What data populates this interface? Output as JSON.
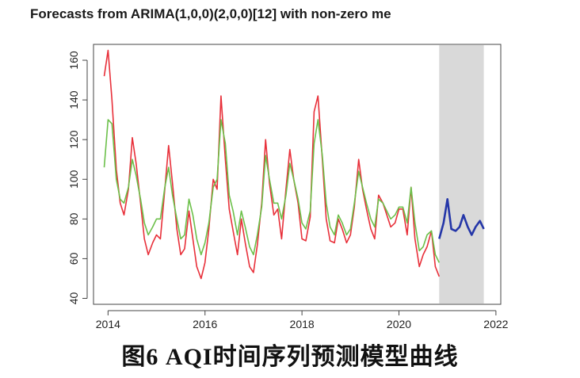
{
  "chart_data": {
    "type": "line",
    "title": "Forecasts from ARIMA(1,0,0)(2,0,0)[12] with non-zero me",
    "xlim": [
      2013.7,
      2022.1
    ],
    "ylim": [
      37,
      168
    ],
    "x_ticks": [
      2014,
      2016,
      2018,
      2020,
      2022
    ],
    "x_tick_labels": [
      "2014",
      "2016",
      "2018",
      "2020",
      "2022"
    ],
    "y_ticks": [
      40,
      60,
      80,
      100,
      120,
      140,
      160
    ],
    "y_tick_labels": [
      "40",
      "60",
      "80",
      "100",
      "120",
      "140",
      "160"
    ],
    "forecast_region": [
      2020.83,
      2021.75
    ],
    "colors": {
      "observed": "#e8303a",
      "fitted": "#6cc04a",
      "forecast": "#2436a8",
      "forecast_band": "#d9d9d9"
    },
    "series": [
      {
        "key": "observed",
        "x": [
          2013.92,
          2014.0,
          2014.08,
          2014.17,
          2014.25,
          2014.33,
          2014.42,
          2014.5,
          2014.58,
          2014.67,
          2014.75,
          2014.83,
          2014.92,
          2015.0,
          2015.08,
          2015.17,
          2015.25,
          2015.33,
          2015.42,
          2015.5,
          2015.58,
          2015.67,
          2015.75,
          2015.83,
          2015.92,
          2016.0,
          2016.08,
          2016.17,
          2016.25,
          2016.33,
          2016.42,
          2016.5,
          2016.58,
          2016.67,
          2016.75,
          2016.83,
          2016.92,
          2017.0,
          2017.08,
          2017.17,
          2017.25,
          2017.33,
          2017.42,
          2017.5,
          2017.58,
          2017.67,
          2017.75,
          2017.83,
          2017.92,
          2018.0,
          2018.08,
          2018.17,
          2018.25,
          2018.33,
          2018.42,
          2018.5,
          2018.58,
          2018.67,
          2018.75,
          2018.83,
          2018.92,
          2019.0,
          2019.08,
          2019.17,
          2019.25,
          2019.33,
          2019.42,
          2019.5,
          2019.58,
          2019.67,
          2019.75,
          2019.83,
          2019.92,
          2020.0,
          2020.08,
          2020.17,
          2020.25,
          2020.33,
          2020.42,
          2020.5,
          2020.58,
          2020.67,
          2020.75,
          2020.83
        ],
        "y": [
          152,
          165,
          140,
          105,
          88,
          82,
          95,
          121,
          108,
          88,
          70,
          62,
          68,
          72,
          70,
          95,
          117,
          98,
          75,
          62,
          65,
          84,
          70,
          56,
          50,
          58,
          75,
          100,
          95,
          142,
          110,
          85,
          74,
          62,
          80,
          68,
          56,
          53,
          67,
          88,
          120,
          98,
          82,
          85,
          70,
          95,
          115,
          100,
          88,
          70,
          69,
          81,
          134,
          142,
          110,
          80,
          69,
          68,
          80,
          75,
          68,
          72,
          86,
          110,
          95,
          85,
          75,
          70,
          92,
          88,
          82,
          76,
          78,
          85,
          85,
          72,
          96,
          70,
          56,
          62,
          66,
          74,
          56,
          51
        ]
      },
      {
        "key": "fitted",
        "x": [
          2013.92,
          2014.0,
          2014.08,
          2014.17,
          2014.25,
          2014.33,
          2014.42,
          2014.5,
          2014.58,
          2014.67,
          2014.75,
          2014.83,
          2014.92,
          2015.0,
          2015.08,
          2015.17,
          2015.25,
          2015.33,
          2015.42,
          2015.5,
          2015.58,
          2015.67,
          2015.75,
          2015.83,
          2015.92,
          2016.0,
          2016.08,
          2016.17,
          2016.25,
          2016.33,
          2016.42,
          2016.5,
          2016.58,
          2016.67,
          2016.75,
          2016.83,
          2016.92,
          2017.0,
          2017.08,
          2017.17,
          2017.25,
          2017.33,
          2017.42,
          2017.5,
          2017.58,
          2017.67,
          2017.75,
          2017.83,
          2017.92,
          2018.0,
          2018.08,
          2018.17,
          2018.25,
          2018.33,
          2018.42,
          2018.5,
          2018.58,
          2018.67,
          2018.75,
          2018.83,
          2018.92,
          2019.0,
          2019.08,
          2019.17,
          2019.25,
          2019.33,
          2019.42,
          2019.5,
          2019.58,
          2019.67,
          2019.75,
          2019.83,
          2019.92,
          2020.0,
          2020.08,
          2020.17,
          2020.25,
          2020.33,
          2020.42,
          2020.5,
          2020.58,
          2020.67,
          2020.75,
          2020.83
        ],
        "y": [
          106,
          130,
          128,
          100,
          90,
          88,
          96,
          110,
          102,
          90,
          78,
          72,
          76,
          80,
          80,
          96,
          106,
          92,
          80,
          70,
          72,
          90,
          82,
          70,
          62,
          68,
          78,
          96,
          100,
          130,
          118,
          92,
          84,
          72,
          84,
          76,
          66,
          62,
          72,
          86,
          112,
          100,
          88,
          88,
          80,
          92,
          108,
          100,
          90,
          78,
          75,
          84,
          118,
          130,
          112,
          88,
          76,
          72,
          82,
          78,
          72,
          75,
          88,
          104,
          96,
          88,
          80,
          76,
          90,
          88,
          84,
          80,
          82,
          86,
          86,
          78,
          96,
          78,
          64,
          66,
          72,
          74,
          62,
          58
        ]
      },
      {
        "key": "forecast",
        "x": [
          2020.83,
          2020.92,
          2021.0,
          2021.08,
          2021.17,
          2021.25,
          2021.33,
          2021.42,
          2021.5,
          2021.58,
          2021.67,
          2021.75
        ],
        "y": [
          70,
          78,
          90,
          75,
          74,
          76,
          82,
          76,
          72,
          76,
          79,
          75
        ]
      }
    ]
  },
  "caption": "图6  AQI时间序列预测模型曲线"
}
